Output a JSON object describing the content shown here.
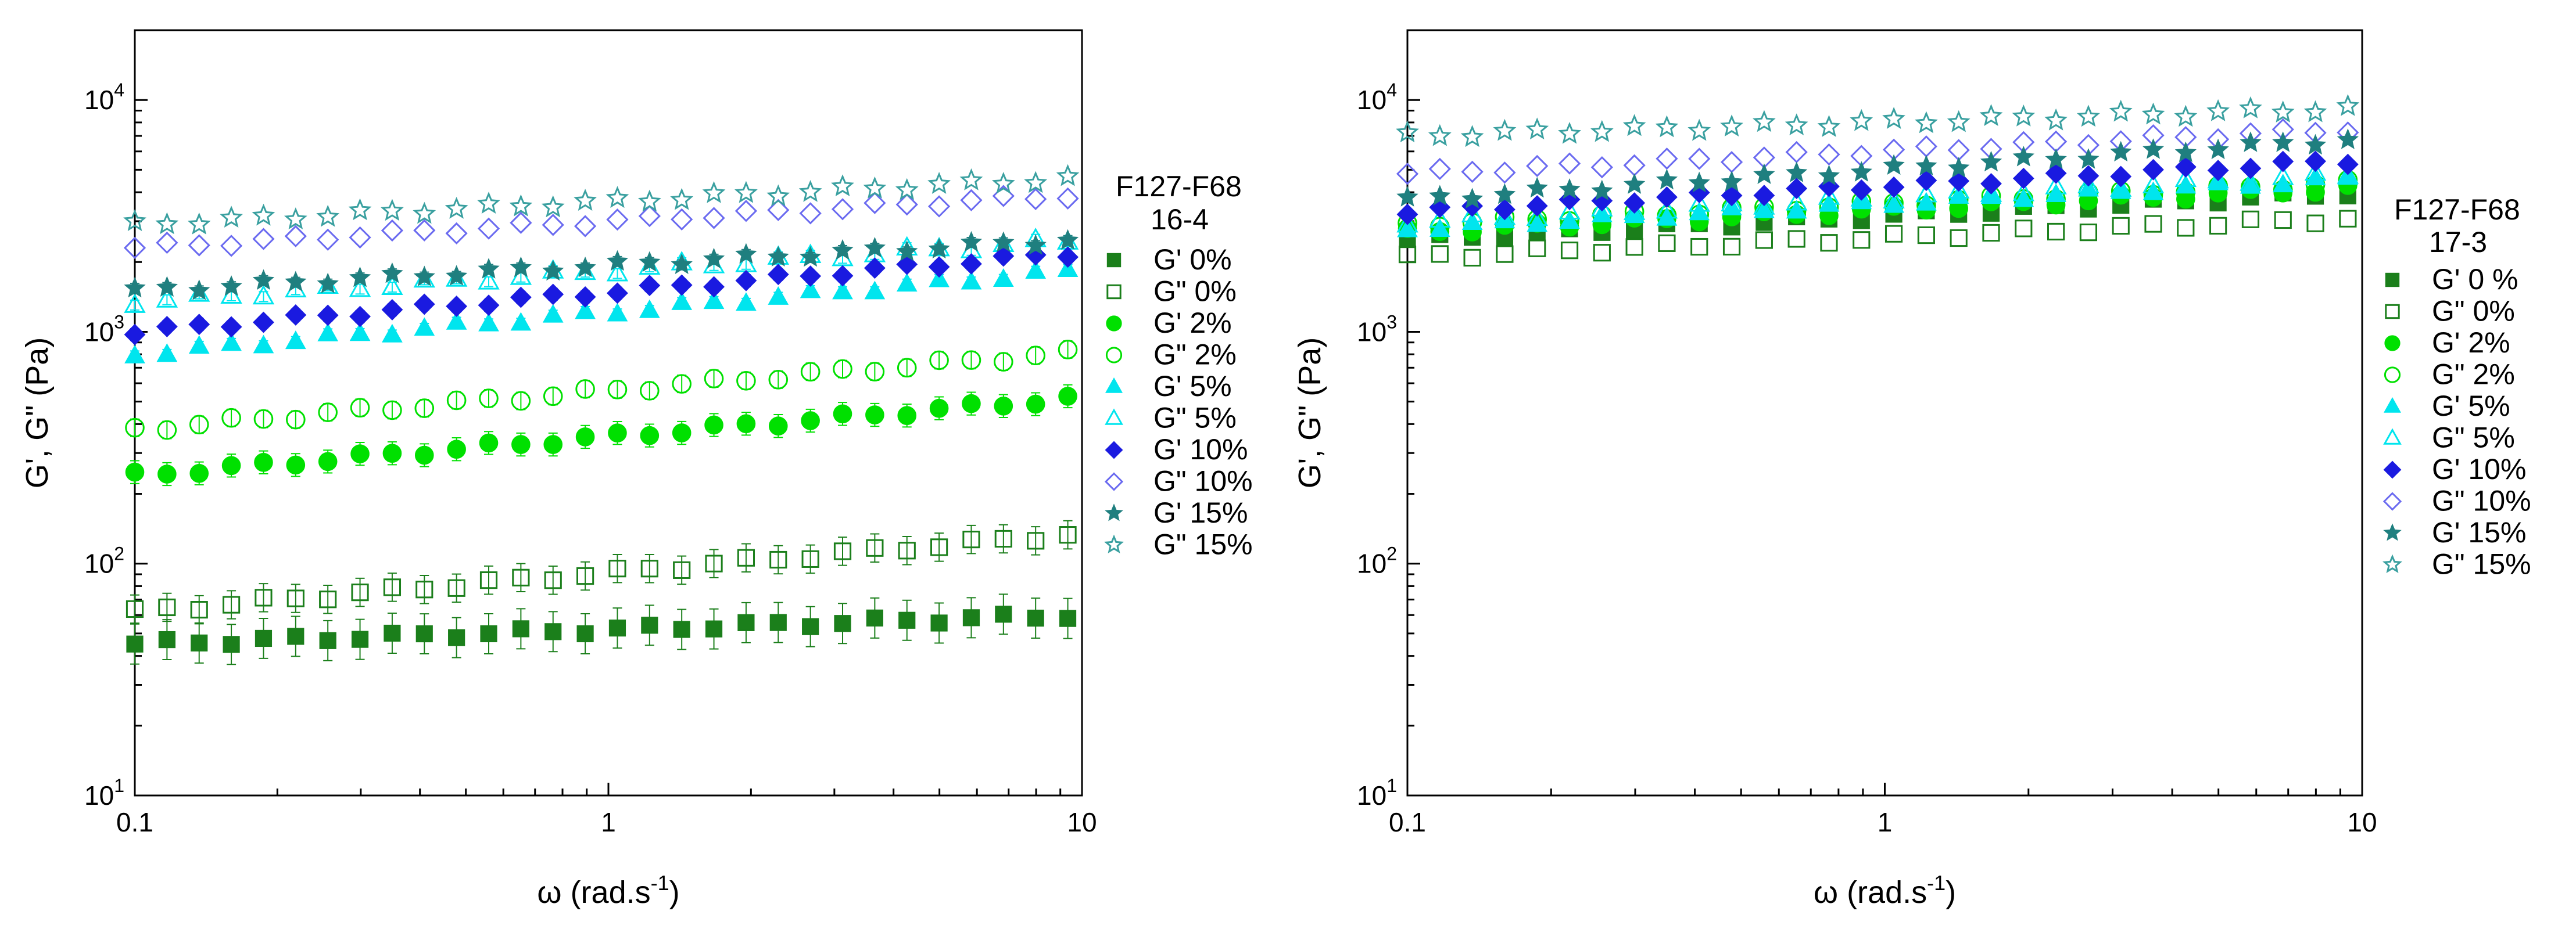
{
  "colors": {
    "g0": "#1b7f1b",
    "g2": "#00e000",
    "g5": "#00e5ee",
    "g10": "#1a1ae0",
    "g10open": "#6a6af0",
    "g15": "#1f7f7f",
    "g15open": "#3aa0a0",
    "axis": "#000000"
  },
  "chart_data": [
    {
      "type": "scatter",
      "xscale": "log",
      "yscale": "log",
      "xlim": [
        0.1,
        10
      ],
      "ylim": [
        10,
        20000
      ],
      "xlabel_omega": "ω",
      "xlabel_rest": " (rad.s",
      "xlabel_sup": "-1",
      "xlabel_close": ")",
      "ylabel": "G', G\" (Pa)",
      "xticks": [
        {
          "v": 0.1,
          "label": "0.1"
        },
        {
          "v": 1,
          "label": "1"
        },
        {
          "v": 10,
          "label": "10"
        }
      ],
      "yticks": [
        {
          "v": 10,
          "base": "10",
          "exp": "1"
        },
        {
          "v": 100,
          "base": "10",
          "exp": "2"
        },
        {
          "v": 1000,
          "base": "10",
          "exp": "3"
        },
        {
          "v": 10000,
          "base": "10",
          "exp": "4"
        }
      ],
      "legend": {
        "position": "right",
        "title_line1": "F127-F68",
        "title_line2": "16-4"
      },
      "series": [
        {
          "name": "G' 0%",
          "marker": "square",
          "filled": true,
          "color": "#1b7f1b",
          "start": 45,
          "end": 60,
          "err": 0.22
        },
        {
          "name": "G\" 0%",
          "marker": "square",
          "filled": false,
          "color": "#1b7f1b",
          "start": 62,
          "end": 135,
          "err": 0.15
        },
        {
          "name": "G' 2%",
          "marker": "circle",
          "filled": true,
          "color": "#00e000",
          "start": 240,
          "end": 520,
          "err": 0.12
        },
        {
          "name": "G\" 2%",
          "marker": "circle",
          "filled": false,
          "color": "#00e000",
          "start": 380,
          "end": 820,
          "err": 0.09
        },
        {
          "name": "G' 5%",
          "marker": "triangle",
          "filled": true,
          "color": "#00e5ee",
          "start": 800,
          "end": 1850,
          "err": 0.05
        },
        {
          "name": "G\" 5%",
          "marker": "triangle",
          "filled": false,
          "color": "#00e5ee",
          "start": 1350,
          "end": 2500,
          "err": 0.05
        },
        {
          "name": "G' 10%",
          "marker": "diamond",
          "filled": true,
          "color": "#1a1ae0",
          "start": 1000,
          "end": 2200,
          "err": 0.06
        },
        {
          "name": "G\" 10%",
          "marker": "diamond",
          "filled": false,
          "color": "#6a6af0",
          "start": 2300,
          "end": 3900,
          "err": 0.04
        },
        {
          "name": "G' 15%",
          "marker": "star",
          "filled": true,
          "color": "#1f7f7f",
          "start": 1500,
          "end": 2500,
          "err": 0.05
        },
        {
          "name": "G\" 15%",
          "marker": "star",
          "filled": false,
          "color": "#3aa0a0",
          "start": 2900,
          "end": 4600,
          "err": 0.04
        }
      ]
    },
    {
      "type": "scatter",
      "xscale": "log",
      "yscale": "log",
      "xlim": [
        0.1,
        10
      ],
      "ylim": [
        10,
        20000
      ],
      "xlabel_omega": "ω",
      "xlabel_rest": " (rad.s",
      "xlabel_sup": "-1",
      "xlabel_close": ")",
      "ylabel": "G', G\" (Pa)",
      "xticks": [
        {
          "v": 0.1,
          "label": "0.1"
        },
        {
          "v": 1,
          "label": "1"
        },
        {
          "v": 10,
          "label": "10"
        }
      ],
      "yticks": [
        {
          "v": 10,
          "base": "10",
          "exp": "1"
        },
        {
          "v": 100,
          "base": "10",
          "exp": "2"
        },
        {
          "v": 1000,
          "base": "10",
          "exp": "3"
        },
        {
          "v": 10000,
          "base": "10",
          "exp": "4"
        }
      ],
      "legend": {
        "position": "right",
        "title_line1": "F127-F68",
        "title_line2": "17-3"
      },
      "series": [
        {
          "name": "G' 0 %",
          "marker": "square",
          "filled": true,
          "color": "#1b7f1b",
          "start": 2500,
          "end": 4000,
          "err": 0.04
        },
        {
          "name": "G\" 0%",
          "marker": "square",
          "filled": false,
          "color": "#1b7f1b",
          "start": 2100,
          "end": 3100,
          "err": 0.04
        },
        {
          "name": "G' 2%",
          "marker": "circle",
          "filled": true,
          "color": "#00e000",
          "start": 2700,
          "end": 4200,
          "err": 0.04
        },
        {
          "name": "G\" 2%",
          "marker": "circle",
          "filled": false,
          "color": "#00e000",
          "start": 2900,
          "end": 4400,
          "err": 0.04
        },
        {
          "name": "G' 5%",
          "marker": "triangle",
          "filled": true,
          "color": "#00e5ee",
          "start": 2800,
          "end": 4600,
          "err": 0.04
        },
        {
          "name": "G\" 5%",
          "marker": "triangle",
          "filled": false,
          "color": "#00e5ee",
          "start": 3000,
          "end": 4800,
          "err": 0.04
        },
        {
          "name": "G' 10%",
          "marker": "diamond",
          "filled": true,
          "color": "#1a1ae0",
          "start": 3300,
          "end": 5500,
          "err": 0.04
        },
        {
          "name": "G\" 10%",
          "marker": "diamond",
          "filled": false,
          "color": "#6a6af0",
          "start": 4800,
          "end": 7500,
          "err": 0.04
        },
        {
          "name": "G' 15%",
          "marker": "star",
          "filled": true,
          "color": "#1f7f7f",
          "start": 3700,
          "end": 6800,
          "err": 0.04
        },
        {
          "name": "G\" 15%",
          "marker": "star",
          "filled": false,
          "color": "#3aa0a0",
          "start": 7000,
          "end": 9200,
          "err": 0.03
        }
      ]
    }
  ]
}
